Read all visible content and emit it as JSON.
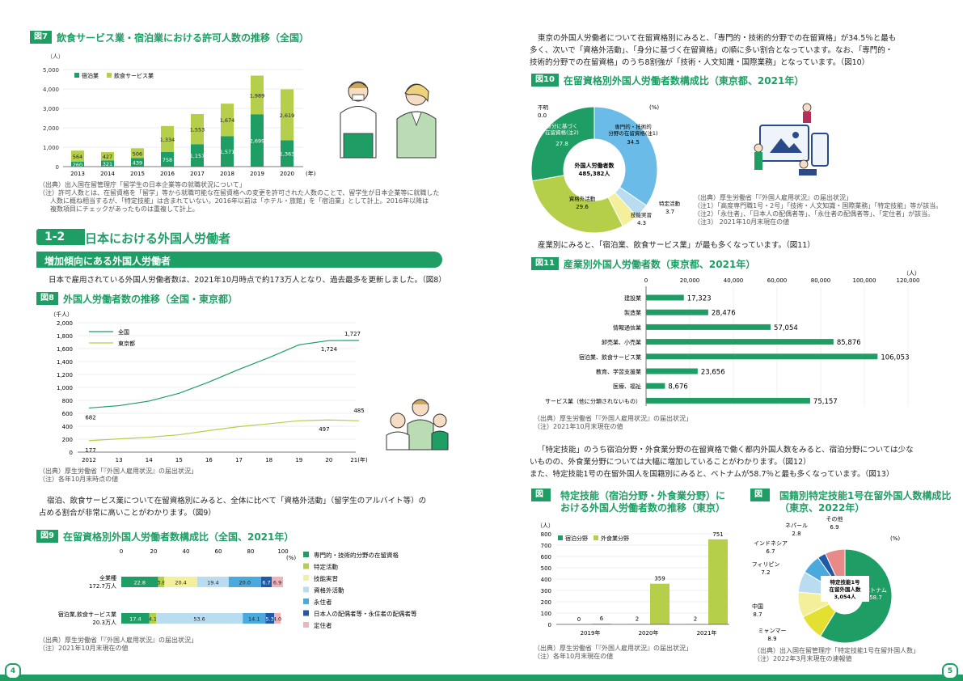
{
  "fig7": {
    "tag": "図7",
    "title": "飲食サービス業・宿泊業における許可人数の推移（全国）",
    "unit": "（人）",
    "xunit": "(年)",
    "legend": [
      "宿泊業",
      "飲食サービス業"
    ],
    "colors": [
      "#1e9e64",
      "#b5cf4a"
    ],
    "years": [
      "2013",
      "2014",
      "2015",
      "2016",
      "2017",
      "2018",
      "2019",
      "2020"
    ],
    "lodging": [
      260,
      321,
      439,
      758,
      1157,
      1571,
      2699,
      1363
    ],
    "food": [
      564,
      427,
      506,
      1334,
      1553,
      1674,
      1989,
      2619
    ],
    "yticks": [
      "5,000",
      "4,000",
      "3,000",
      "2,000",
      "1,000",
      "0"
    ],
    "source": "（出典）出入国在留管理庁「留学生の日本企業等の就職状況について」",
    "note1": "（注）許可人数とは、在留資格を「留学」等から就職可能な在留資格への変更を許可された人数のことで、留学生が日本企業等に就職した",
    "note2": "人数に概ね相当するが、「特定技能」は含まれていない。2016年以前は「ホテル・旅館」を「宿泊業」として計上。2016年以降は",
    "note3": "複数項目にチェックがあったものは重複して計上。"
  },
  "section": {
    "num": "1-2",
    "title": "日本における外国人労働者",
    "sub": "増加傾向にある外国人労働者",
    "text": "日本で雇用されている外国人労働者数は、2021年10月時点で約173万人となり、過去最多を更新しました。（図8）"
  },
  "fig8": {
    "tag": "図8",
    "title": "外国人労働者数の推移（全国・東京都）",
    "unit": "（千人）",
    "legend": [
      "全国",
      "東京都"
    ],
    "yticks": [
      "2,000",
      "1,800",
      "1,600",
      "1,400",
      "1,200",
      "1,000",
      "800",
      "600",
      "400",
      "200",
      "0"
    ],
    "xticks": [
      "2012",
      "13",
      "14",
      "15",
      "16",
      "17",
      "18",
      "19",
      "20",
      "21(年)"
    ],
    "national": [
      682,
      718,
      788,
      908,
      1084,
      1279,
      1460,
      1659,
      1724,
      1727
    ],
    "tokyo": [
      177,
      205,
      230,
      268,
      333,
      394,
      438,
      485,
      497,
      485
    ],
    "labels": {
      "n0": "682",
      "n20": "1,724",
      "n21": "1,727",
      "t0": "177",
      "t20": "497",
      "t21": "485"
    },
    "source": "（出典）厚生労働省「『外国人雇用状況』の届出状況」",
    "note": "（注）各年10月末時点の値"
  },
  "para1": {
    "l1": "宿泊、飲食サービス業について在留資格別にみると、全体に比べて「資格外活動」（留学生のアルバイト等）の",
    "l2": "占める割合が非常に高いことがわかります。（図9）"
  },
  "fig9": {
    "tag": "図9",
    "title": "在留資格別外国人労働者数構成比（全国、2021年）",
    "xticks": [
      "0",
      "20",
      "40",
      "60",
      "80",
      "100"
    ],
    "unit": "(%)",
    "rows": [
      {
        "name": "全業種",
        "sub": "172.7万人",
        "values": [
          22.8,
          3.8,
          20.4,
          19.4,
          20.0,
          6.7,
          6.9
        ],
        "labels": [
          "22.8",
          "3.8",
          "20.4",
          "19.4",
          "20.0",
          "6.7",
          "6.9"
        ]
      },
      {
        "name": "宿泊業,飲食サービス業",
        "sub": "20.3万人",
        "values": [
          17.4,
          4.1,
          0.0,
          53.6,
          14.1,
          5.3,
          4.0
        ],
        "labels": [
          "17.4",
          "4.1",
          "",
          "53.6",
          "14.1",
          "5.3",
          "4.0"
        ]
      }
    ],
    "legend": [
      "専門的・技術的分野の在留資格",
      "特定活動",
      "技能実習",
      "資格外活動",
      "永住者",
      "日本人の配偶者等・永住者の配偶者等",
      "定住者"
    ],
    "colors": [
      "#1e9e64",
      "#b5cf4a",
      "#f3ef9a",
      "#b9dcf1",
      "#4aa9dd",
      "#1e5aa8",
      "#f1b3b7"
    ],
    "source": "（出典）厚生労働省「『外国人雇用状況』の届出状況」",
    "note": "（注）2021年10月末現在の値"
  },
  "para2": {
    "l1": "東京の外国人労働者について在留資格別にみると、「専門的・技術的分野での在留資格」が34.5％と最も",
    "l2": "多く、次いで「資格外活動」、「身分に基づく在留資格」の順に多い割合となっています。なお、「専門的・",
    "l3": "技術的分野での在留資格」のうち8割強が「技術・人文知識・国際業務」となっています。（図10）"
  },
  "fig10": {
    "tag": "図10",
    "title": "在留資格別外国人労働者数構成比（東京都、2021年）",
    "unit": "(%)",
    "center1": "外国人労働者数",
    "center2": "485,382人",
    "slices": [
      {
        "name": "専門的・技術的分野の在留資格(注1)",
        "value": 34.5,
        "color": "#6bbbe8"
      },
      {
        "name": "特定活動",
        "value": 3.7,
        "color": "#b9dcf1"
      },
      {
        "name": "技能実習",
        "value": 4.3,
        "color": "#f3ef9a"
      },
      {
        "name": "資格外活動",
        "value": 29.6,
        "color": "#b5cf4a"
      },
      {
        "name": "身分に基づく在留資格(注2)",
        "value": 27.8,
        "color": "#1e9e64"
      },
      {
        "name": "不明",
        "value": 0.0,
        "color": "#888888"
      }
    ],
    "labels": {
      "s0a": "専門的・技術的",
      "s0b": "分野の在留資格(注1)",
      "s0v": "34.5",
      "s1a": "特定活動",
      "s1v": "3.7",
      "s2a": "技能実習",
      "s2v": "4.3",
      "s3a": "資格外活動",
      "s3v": "29.6",
      "s4a": "身分に基づく",
      "s4b": "在留資格(注2)",
      "s4v": "27.8",
      "s5a": "不明",
      "s5v": "0.0"
    },
    "source": "（出典）厚生労働省「『外国人雇用状況』の届出状況」",
    "n1": "（注1）「高度専門職1号・2号」「技術・人文知識・国際業務」「特定技能」等が該当。",
    "n2": "（注2）「永住者」、「日本人の配偶者等」、「永住者の配偶者等」、「定住者」が該当。",
    "n3": "（注3） 2021年10月末現在の値"
  },
  "para3": "産業別にみると、「宿泊業、飲食サービス業」が最も多くなっています。（図11）",
  "fig11": {
    "tag": "図11",
    "title": "産業別外国人労働者数（東京都、2021年）",
    "unit": "（人）",
    "xticks": [
      "0",
      "20,000",
      "40,000",
      "60,000",
      "80,000",
      "100,000",
      "120,000"
    ],
    "categories": [
      "建設業",
      "製造業",
      "情報通信業",
      "卸売業、小売業",
      "宿泊業、飲食サービス業",
      "教育、学習支援業",
      "医療、福祉",
      "サービス業（他に分類されないもの）"
    ],
    "values": [
      17323,
      28476,
      57054,
      85876,
      106053,
      23656,
      8676,
      75157
    ],
    "labels": [
      "17,323",
      "28,476",
      "57,054",
      "85,876",
      "106,053",
      "23,656",
      "8,676",
      "75,157"
    ],
    "source": "（出典）厚生労働省「『外国人雇用状況』の届出状況」",
    "note": "（注）2021年10月末現在の値"
  },
  "para4": {
    "l1": "「特定技能」のうち宿泊分野・外食業分野の在留資格で働く都内外国人数をみると、宿泊分野については少な",
    "l2": "いものの、外食業分野については大幅に増加していることがわかります。（図12）",
    "l3": "また、特定技能1号の在留外国人を国籍別にみると、ベトナムが58.7％と最も多くなっています。（図13）"
  },
  "fig12": {
    "tag": "図12",
    "title1": "特定技能（宿泊分野・外食業分野）に",
    "title2": "おける外国人労働者数の推移（東京）",
    "unit": "（人）",
    "legend": [
      "宿泊分野",
      "外食業分野"
    ],
    "yticks": [
      "800",
      "700",
      "600",
      "500",
      "400",
      "300",
      "200",
      "100",
      "0"
    ],
    "years": [
      "2019年",
      "2020年",
      "2021年"
    ],
    "lodging": [
      0,
      2,
      2
    ],
    "food": [
      6,
      359,
      751
    ],
    "lodgingLabels": [
      "0",
      "2",
      "2"
    ],
    "foodLabels": [
      "6",
      "359",
      "751"
    ],
    "source": "（出典）厚生労働省「『外国人雇用状況』の届出状況」",
    "note": "（注）各年10月末現在の値"
  },
  "fig13": {
    "tag": "図13",
    "title1": "国籍別特定技能1号在留外国人数構成比",
    "title2": "（東京、2022年）",
    "unit": "(%)",
    "center1": "特定技能1号",
    "center2": "在留外国人数",
    "center3": "3,054人",
    "slices": [
      {
        "name": "ベトナム",
        "value": 58.7,
        "color": "#1e9e64"
      },
      {
        "name": "ミャンマー",
        "value": 8.9,
        "color": "#e3e032"
      },
      {
        "name": "中国",
        "value": 8.7,
        "color": "#f3ef9a"
      },
      {
        "name": "フィリピン",
        "value": 7.2,
        "color": "#b9dcf1"
      },
      {
        "name": "インドネシア",
        "value": 6.7,
        "color": "#4aa9dd"
      },
      {
        "name": "ネパール",
        "value": 2.8,
        "color": "#1e5aa8"
      },
      {
        "name": "その他",
        "value": 6.9,
        "color": "#e88a8a"
      }
    ],
    "labels": {
      "v0": "ベトナム",
      "v0v": "58.7",
      "m": "ミャンマー",
      "mv": "8.9",
      "c": "中国",
      "cv": "8.7",
      "p": "フィリピン",
      "pv": "7.2",
      "i": "インドネシア",
      "iv": "6.7",
      "n": "ネパール",
      "nv": "2.8",
      "o": "その他",
      "ov": "6.9"
    },
    "source": "（出典）出入国在留管理庁「特定技能1号在留外国人数」",
    "note": "（注）2022年3月末現在の速報値"
  },
  "pages": {
    "left": "4",
    "right": "5"
  }
}
